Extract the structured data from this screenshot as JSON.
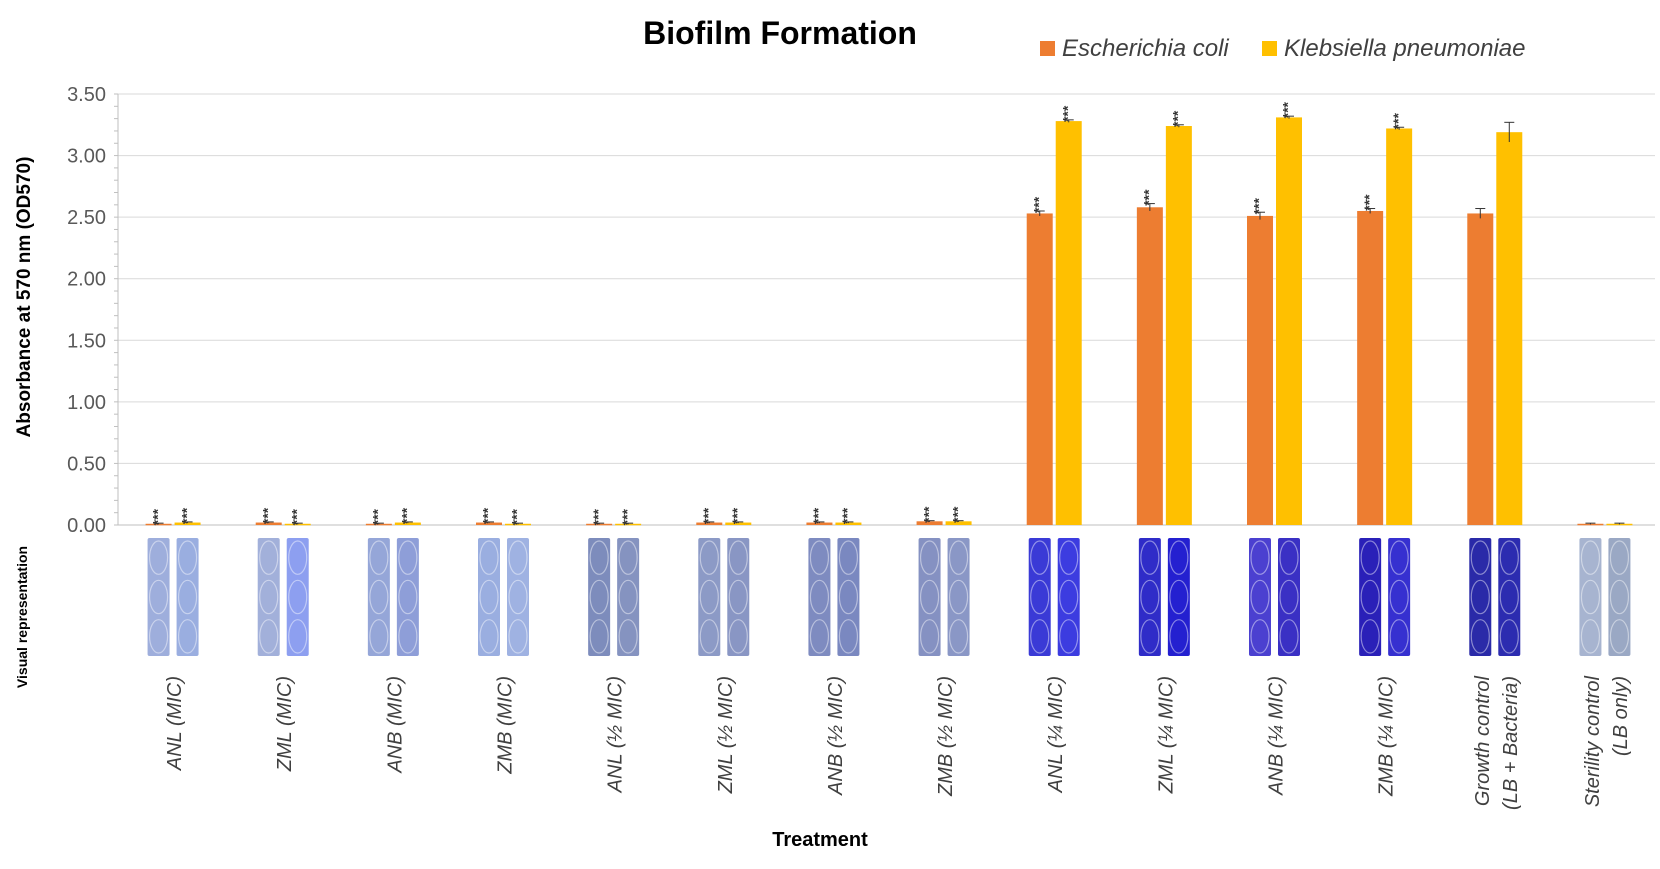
{
  "chart_data": {
    "type": "bar",
    "title": "Biofilm Formation",
    "xlabel": "Treatment",
    "ylabel": "Absorbance at 570 nm (OD570)",
    "side_label": "Visual representation",
    "ylim": [
      0,
      3.5
    ],
    "yticks": [
      "0.00",
      "0.50",
      "1.00",
      "1.50",
      "2.00",
      "2.50",
      "3.00",
      "3.50"
    ],
    "grid": true,
    "legend_position": "top-right",
    "categories": [
      [
        "ANL (MIC)"
      ],
      [
        "ZML (MIC)"
      ],
      [
        "ANB (MIC)"
      ],
      [
        "ZMB (MIC)"
      ],
      [
        "ANL (½ MIC)"
      ],
      [
        "ZML (½ MIC)"
      ],
      [
        "ANB (½ MIC)"
      ],
      [
        "ZMB (½ MIC)"
      ],
      [
        "ANL (¼ MIC)"
      ],
      [
        "ZML (¼ MIC)"
      ],
      [
        "ANB (¼ MIC)"
      ],
      [
        "ZMB (¼ MIC)"
      ],
      [
        "Growth control",
        "(LB + Bacteria)"
      ],
      [
        "Sterility control",
        "(LB only)"
      ]
    ],
    "series": [
      {
        "name": "Escherichia coli",
        "color": "#ed7d31",
        "values": [
          0.01,
          0.02,
          0.01,
          0.02,
          0.01,
          0.02,
          0.02,
          0.03,
          2.53,
          2.58,
          2.51,
          2.55,
          2.53,
          0.01
        ],
        "errors": [
          0.005,
          0.005,
          0.005,
          0.005,
          0.005,
          0.005,
          0.005,
          0.005,
          0.02,
          0.03,
          0.03,
          0.02,
          0.04,
          0.005
        ],
        "annotations": [
          "***",
          "***",
          "***",
          "***",
          "***",
          "***",
          "***",
          "***",
          "***",
          "***",
          "***",
          "***",
          "",
          ""
        ]
      },
      {
        "name": "Klebsiella pneumoniae",
        "color": "#ffc000",
        "values": [
          0.02,
          0.01,
          0.02,
          0.01,
          0.01,
          0.02,
          0.02,
          0.03,
          3.28,
          3.24,
          3.31,
          3.22,
          3.19,
          0.01
        ],
        "errors": [
          0.005,
          0.005,
          0.005,
          0.005,
          0.005,
          0.005,
          0.005,
          0.005,
          0.01,
          0.01,
          0.01,
          0.01,
          0.08,
          0.005
        ],
        "annotations": [
          "***",
          "***",
          "***",
          "***",
          "***",
          "***",
          "***",
          "***",
          "***",
          "***",
          "***",
          "***",
          "",
          ""
        ]
      }
    ],
    "well_colors": [
      [
        "#9eaedc",
        "#9aaee0"
      ],
      [
        "#a2b0da",
        "#8d9ff0"
      ],
      [
        "#95a6d8",
        "#8e9ed8"
      ],
      [
        "#9aaee0",
        "#9fb2e2"
      ],
      [
        "#7d8cbc",
        "#8593c0"
      ],
      [
        "#8c9ac6",
        "#8996c4"
      ],
      [
        "#7e8bc0",
        "#7a88c0"
      ],
      [
        "#8591c2",
        "#8a97c6"
      ],
      [
        "#3a3ad6",
        "#3c3ce0"
      ],
      [
        "#2f2cc8",
        "#2420d0"
      ],
      [
        "#4b40d0",
        "#3a30c4"
      ],
      [
        "#2a20b8",
        "#3630d0"
      ],
      [
        "#2a2aa8",
        "#2c2cb0"
      ],
      [
        "#a7b4d0",
        "#9aa8c4"
      ]
    ]
  }
}
